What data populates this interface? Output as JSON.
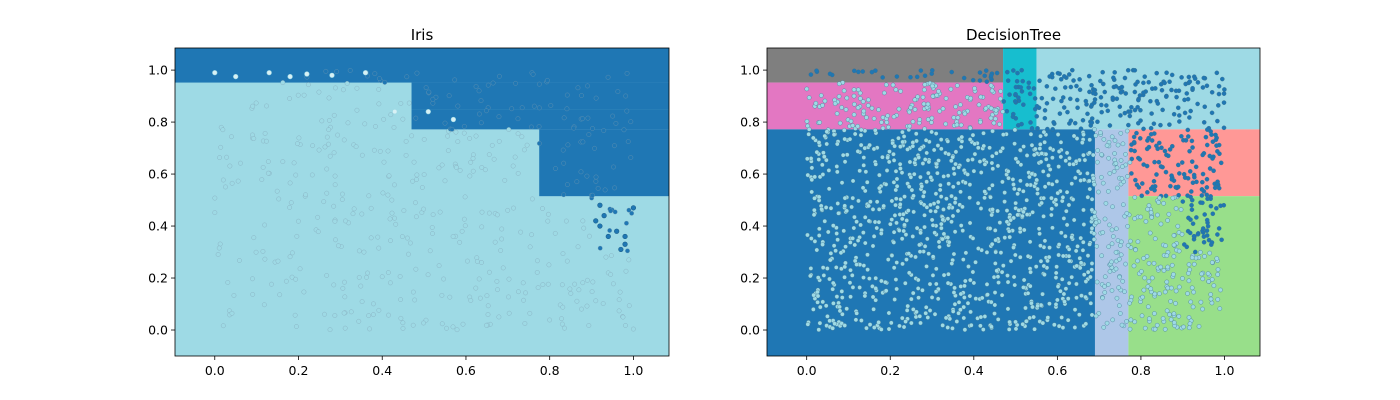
{
  "chart_data": [
    {
      "type": "scatter",
      "title": "Iris",
      "xlim": [
        -0.095,
        1.085
      ],
      "ylim": [
        -0.1,
        1.085
      ],
      "xticks": [
        "0.0",
        "0.2",
        "0.4",
        "0.6",
        "0.8",
        "1.0"
      ],
      "yticks": [
        "0.0",
        "0.2",
        "0.4",
        "0.6",
        "0.8",
        "1.0"
      ],
      "grid": false,
      "colors": {
        "class0_region": "#9edae5",
        "class1_region": "#1f77b4",
        "class0_point": "#9edae5",
        "class1_point": "#1f77b4",
        "point_edge": "#7f9fb0"
      },
      "regions": [
        {
          "class": 1,
          "x": [
            -0.095,
            1.085
          ],
          "y": [
            0.952,
            1.085
          ]
        },
        {
          "class": 1,
          "x": [
            0.47,
            1.085
          ],
          "y": [
            0.85,
            0.952
          ]
        },
        {
          "class": 1,
          "x": [
            0.47,
            1.085
          ],
          "y": [
            0.772,
            0.85
          ]
        },
        {
          "class": 1,
          "x": [
            0.775,
            1.085
          ],
          "y": [
            0.515,
            0.772
          ]
        }
      ],
      "highlighted_points_class1": [
        [
          0.92,
          0.48
        ],
        [
          0.93,
          0.44
        ],
        [
          0.91,
          0.42
        ],
        [
          0.96,
          0.38
        ],
        [
          0.94,
          0.36
        ],
        [
          0.98,
          0.36
        ],
        [
          0.97,
          0.31
        ],
        [
          1.0,
          0.47
        ],
        [
          0.98,
          0.33
        ],
        [
          0.92,
          0.4
        ]
      ],
      "highlighted_points_class0": [
        [
          0.0,
          0.99
        ],
        [
          0.05,
          0.975
        ],
        [
          0.13,
          0.99
        ],
        [
          0.18,
          0.975
        ],
        [
          0.43,
          0.84
        ],
        [
          0.51,
          0.84
        ],
        [
          0.57,
          0.81
        ],
        [
          0.36,
          0.99
        ],
        [
          0.28,
          0.98
        ],
        [
          0.22,
          0.985
        ]
      ],
      "sample_note": "approx. 500 uniformly scattered points over [0,1]x[0,1]"
    },
    {
      "type": "scatter",
      "title": "DecisionTree",
      "xlim": [
        -0.095,
        1.085
      ],
      "ylim": [
        -0.1,
        1.085
      ],
      "xticks": [
        "0.0",
        "0.2",
        "0.4",
        "0.6",
        "0.8",
        "1.0"
      ],
      "yticks": [
        "0.0",
        "0.2",
        "0.4",
        "0.6",
        "0.8",
        "1.0"
      ],
      "grid": false,
      "colors": {
        "class0_point": "#9edae5",
        "class1_point": "#1f77b4",
        "point_edge": "#3a6f8c"
      },
      "regions": [
        {
          "color": "#7f7f7f",
          "x": [
            -0.095,
            0.47
          ],
          "y": [
            0.952,
            1.085
          ]
        },
        {
          "color": "#17becf",
          "x": [
            0.47,
            0.55
          ],
          "y": [
            0.772,
            1.085
          ]
        },
        {
          "color": "#9edae5",
          "x": [
            0.55,
            1.085
          ],
          "y": [
            0.772,
            1.085
          ]
        },
        {
          "color": "#e377c2",
          "x": [
            -0.095,
            0.47
          ],
          "y": [
            0.772,
            0.952
          ]
        },
        {
          "color": "#1f77b4",
          "x": [
            -0.095,
            0.69
          ],
          "y": [
            -0.1,
            0.772
          ]
        },
        {
          "color": "#aec7e8",
          "x": [
            0.69,
            0.77
          ],
          "y": [
            -0.1,
            0.772
          ]
        },
        {
          "color": "#ff9896",
          "x": [
            0.77,
            1.085
          ],
          "y": [
            0.515,
            0.772
          ]
        },
        {
          "color": "#98df8a",
          "x": [
            0.77,
            1.085
          ],
          "y": [
            -0.1,
            0.515
          ]
        }
      ],
      "sample_note": "approx. 1800 uniformly scattered points over [0,1]x[0,1]"
    }
  ]
}
